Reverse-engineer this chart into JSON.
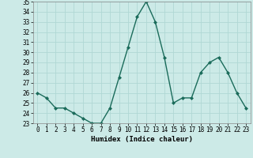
{
  "x": [
    0,
    1,
    2,
    3,
    4,
    5,
    6,
    7,
    8,
    9,
    10,
    11,
    12,
    13,
    14,
    15,
    16,
    17,
    18,
    19,
    20,
    21,
    22,
    23
  ],
  "y": [
    26,
    25.5,
    24.5,
    24.5,
    24,
    23.5,
    23,
    23,
    24.5,
    27.5,
    30.5,
    33.5,
    35,
    33,
    29.5,
    25,
    25.5,
    25.5,
    28,
    29,
    29.5,
    28,
    26,
    24.5
  ],
  "line_color": "#1a6b5a",
  "marker": "D",
  "marker_size": 2.0,
  "linewidth": 1.0,
  "xlabel": "Humidex (Indice chaleur)",
  "ylim": [
    23,
    35
  ],
  "xlim": [
    -0.5,
    23.5
  ],
  "yticks": [
    23,
    24,
    25,
    26,
    27,
    28,
    29,
    30,
    31,
    32,
    33,
    34,
    35
  ],
  "xticks": [
    0,
    1,
    2,
    3,
    4,
    5,
    6,
    7,
    8,
    9,
    10,
    11,
    12,
    13,
    14,
    15,
    16,
    17,
    18,
    19,
    20,
    21,
    22,
    23
  ],
  "background_color": "#cceae7",
  "grid_color": "#b0d8d4",
  "tick_label_fontsize": 5.5,
  "xlabel_fontsize": 6.5
}
